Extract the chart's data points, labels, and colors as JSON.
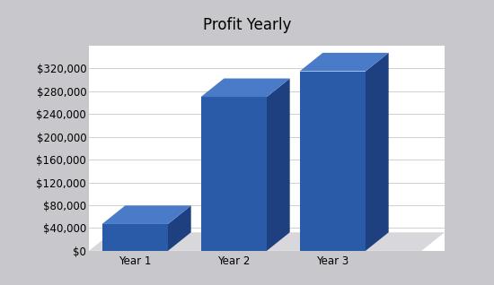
{
  "title": "Profit Yearly",
  "categories": [
    "Year 1",
    "Year 2",
    "Year 3"
  ],
  "values": [
    47000,
    270000,
    315000
  ],
  "bar_color_front": "#2A5BA8",
  "bar_color_top": "#4A7BC8",
  "bar_color_side": "#1E4080",
  "wall_color": "#C8C8CC",
  "floor_color": "#D8D8DC",
  "plot_bg_color": "#FFFFFF",
  "grid_color": "#D0D0D0",
  "ylim": [
    0,
    360000
  ],
  "ytick_values": [
    0,
    40000,
    80000,
    120000,
    160000,
    200000,
    240000,
    280000,
    320000
  ],
  "title_fontsize": 12,
  "tick_fontsize": 8.5,
  "font_family": "DejaVu Sans"
}
